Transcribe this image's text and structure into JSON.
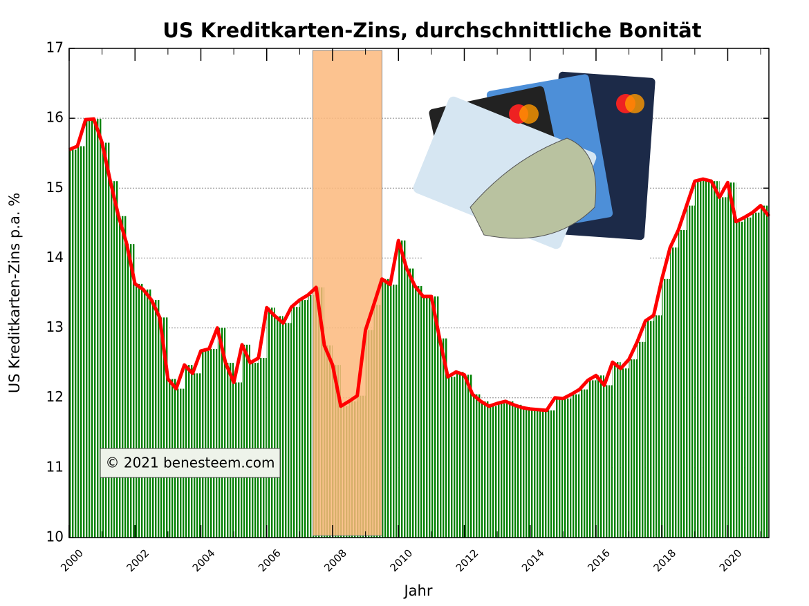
{
  "chart_data": {
    "type": "line",
    "title": "US Kreditkarten-Zins, durchschnittliche Bonität",
    "x_label": "Jahr",
    "y_label": "US Kreditkarten-Zins p.a. %",
    "annotation": "© 2021 benesteem.com",
    "x": [
      2000,
      2000.25,
      2000.5,
      2000.75,
      2001,
      2001.25,
      2001.5,
      2001.75,
      2002,
      2002.25,
      2002.5,
      2002.75,
      2003,
      2003.25,
      2003.5,
      2003.75,
      2004,
      2004.25,
      2004.5,
      2004.75,
      2005,
      2005.25,
      2005.5,
      2005.75,
      2006,
      2006.25,
      2006.5,
      2006.75,
      2007,
      2007.25,
      2007.5,
      2007.75,
      2008,
      2008.25,
      2008.5,
      2008.75,
      2009,
      2009.25,
      2009.5,
      2009.75,
      2010,
      2010.25,
      2010.5,
      2010.75,
      2011,
      2011.25,
      2011.5,
      2011.75,
      2012,
      2012.25,
      2012.5,
      2012.75,
      2013,
      2013.25,
      2013.5,
      2013.75,
      2014,
      2014.25,
      2014.5,
      2014.75,
      2015,
      2015.25,
      2015.5,
      2015.75,
      2016,
      2016.25,
      2016.5,
      2016.75,
      2017,
      2017.25,
      2017.5,
      2017.75,
      2018,
      2018.25,
      2018.5,
      2018.75,
      2019,
      2019.25,
      2019.5,
      2019.75,
      2020,
      2020.25,
      2020.5,
      2020.75,
      2021,
      2021.25
    ],
    "values": [
      15.55,
      15.6,
      15.98,
      15.99,
      15.65,
      15.1,
      14.6,
      14.2,
      13.63,
      13.55,
      13.4,
      13.15,
      12.27,
      12.13,
      12.47,
      12.35,
      12.67,
      12.7,
      13.0,
      12.5,
      12.22,
      12.76,
      12.5,
      12.57,
      13.29,
      13.17,
      13.07,
      13.3,
      13.4,
      13.47,
      13.58,
      12.75,
      12.47,
      11.88,
      11.95,
      12.03,
      12.97,
      13.33,
      13.7,
      13.62,
      14.25,
      13.85,
      13.6,
      13.45,
      13.45,
      12.85,
      12.3,
      12.37,
      12.33,
      12.05,
      11.95,
      11.88,
      11.92,
      11.95,
      11.9,
      11.86,
      11.84,
      11.83,
      11.82,
      12.0,
      11.99,
      12.05,
      12.12,
      12.25,
      12.32,
      12.18,
      12.51,
      12.42,
      12.55,
      12.8,
      13.1,
      13.18,
      13.7,
      14.15,
      14.4,
      14.75,
      15.1,
      15.13,
      15.1,
      14.87,
      15.08,
      14.52,
      14.58,
      14.65,
      14.75,
      14.6
    ],
    "color": "#ff0000",
    "bar_color": "#008000",
    "bars": true,
    "shade": [
      2007.4,
      2009.5
    ],
    "shade_color": "#fbb97c",
    "xlim": [
      2000,
      2021.25
    ],
    "xticks": [
      2000,
      2002,
      2004,
      2006,
      2008,
      2010,
      2012,
      2014,
      2016,
      2018,
      2020
    ],
    "ylim": [
      10,
      17
    ],
    "yticks": [
      10,
      11,
      12,
      13,
      14,
      15,
      16,
      17
    ],
    "grid": true
  }
}
